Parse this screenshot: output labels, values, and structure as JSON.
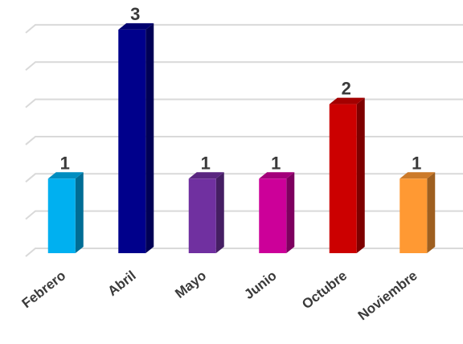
{
  "chart_data": {
    "type": "bar",
    "categories": [
      "Febrero",
      "Abril",
      "Mayo",
      "Junio",
      "Octubre",
      "Noviembre"
    ],
    "values": [
      1,
      3,
      1,
      1,
      2,
      1
    ],
    "ylim": [
      0,
      3
    ],
    "grid": true,
    "legend": "none",
    "bar_colors": [
      "#00B0F0",
      "#00008B",
      "#7030A0",
      "#CC0099",
      "#CC0000",
      "#FF9933"
    ],
    "style": "3d-column"
  }
}
